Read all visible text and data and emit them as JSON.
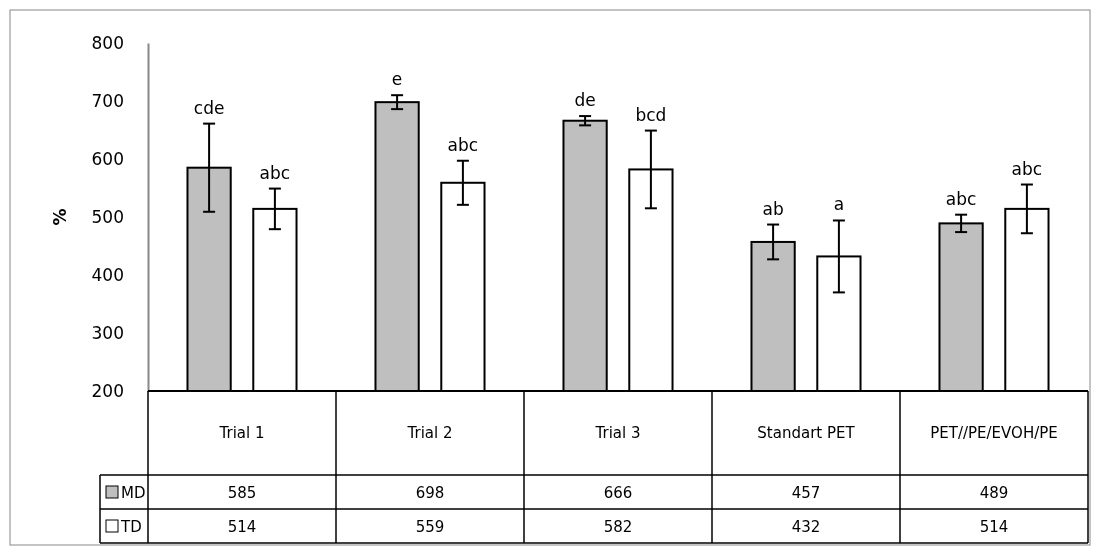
{
  "chart_data": {
    "type": "bar",
    "ylabel": "%",
    "categories": [
      "Trial 1",
      "Trial 2",
      "Trial 3",
      "Standart PET",
      "PET//PE/EVOH/PE"
    ],
    "series": [
      {
        "name": "MD",
        "color": "#bfbfbf",
        "values": [
          585,
          698,
          666,
          457,
          489
        ],
        "errors": [
          76,
          12,
          8,
          30,
          15
        ]
      },
      {
        "name": "TD",
        "color": "#ffffff",
        "values": [
          514,
          559,
          582,
          432,
          514
        ],
        "errors": [
          35,
          38,
          67,
          62,
          42
        ]
      }
    ],
    "ylim": [
      200,
      800
    ],
    "yticks": [
      200,
      300,
      400,
      500,
      600,
      700,
      800
    ],
    "data_labels": true,
    "legend": "bottom",
    "grid": false,
    "annotations": [
      "cde",
      "abc",
      "e",
      "abc",
      "de",
      "bcd",
      "ab",
      "a",
      "abc",
      "abc"
    ]
  }
}
